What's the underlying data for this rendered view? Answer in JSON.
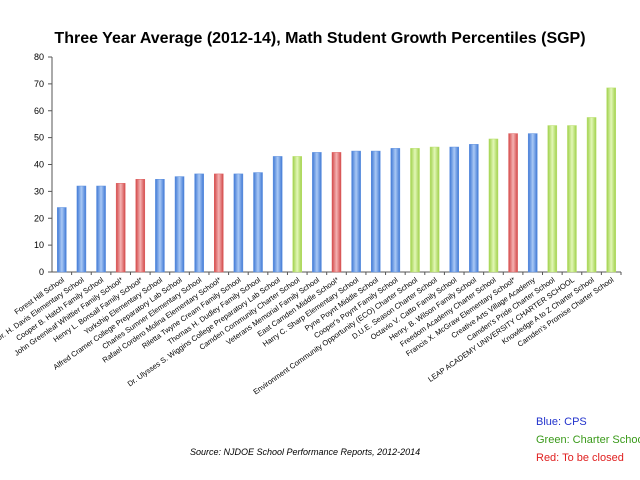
{
  "chart_data": {
    "type": "bar",
    "title": "Three Year Average (2012-14), Math Student Growth Percentiles (SGP)",
    "xlabel": "",
    "ylabel": "",
    "ylim": [
      0,
      80
    ],
    "yticks": [
      0,
      10,
      20,
      30,
      40,
      50,
      60,
      70,
      80
    ],
    "grid": false,
    "source": "Source: NJDOE School Performance Reports, 2012-2014",
    "legend": [
      {
        "label": "Blue: CPS",
        "color": "#2233cc"
      },
      {
        "label": "Green: Charter Schools",
        "color": "#3a9a1a"
      },
      {
        "label": "Red: To be closed",
        "color": "#e02020"
      }
    ],
    "colors": {
      "blue": "#5b8fe0",
      "green": "#b8e06a",
      "red": "#e06060"
    },
    "categories": [
      "Forest Hill School",
      "Dr. H. Davis Elementary School",
      "Cooper B. Hatch Family School",
      "John Greenleaf Whittier Family School*",
      "Henry L. Bonsall Family School*",
      "Yorkship Elementary School",
      "Alfred Cramer College Preparatory Lab School",
      "Charles Sumner Elementary School",
      "Rafael Cordero Molina Elementary School*",
      "Riletta Twyne Cream Family School",
      "Thomas H. Dudley Family School",
      "Dr. Ulysses S. Wiggins College Preparatory Lab School",
      "Camden Community Charter School",
      "Veterans Memorial Family School",
      "East Camden Middle School*",
      "Harry C. Sharp Elementary School",
      "Pyne Poynt Middle School",
      "Cooper's Poynt Family School",
      "Environment Community Opportunity (ECO) Charter School",
      "D.U.E. Season Charter School",
      "Octavio V. Catto Family School",
      "Henry. B. Wilson Family School",
      "Freedom Academy Charter School",
      "Francis X. McGraw Elementary School*",
      "Creative Arts Village Academy",
      "Camden's Pride Charter School",
      "LEAP ACADEMY UNIVERSITY CHARTER SCHOOL",
      "Knowledge A to Z Charter School",
      "Camden's Promise Charter School"
    ],
    "values": [
      24,
      32,
      32,
      33,
      34.5,
      34.5,
      35.5,
      36.5,
      36.5,
      36.5,
      37,
      43,
      43,
      44.5,
      44.5,
      45,
      45,
      46,
      46,
      46.5,
      46.5,
      47.5,
      49.5,
      51.5,
      51.5,
      54.5,
      54.5,
      57.5,
      68.5
    ],
    "bar_colors": [
      "blue",
      "blue",
      "blue",
      "red",
      "red",
      "blue",
      "blue",
      "blue",
      "red",
      "blue",
      "blue",
      "blue",
      "green",
      "blue",
      "red",
      "blue",
      "blue",
      "blue",
      "green",
      "green",
      "blue",
      "blue",
      "green",
      "red",
      "blue",
      "green",
      "green",
      "green",
      "green"
    ]
  }
}
